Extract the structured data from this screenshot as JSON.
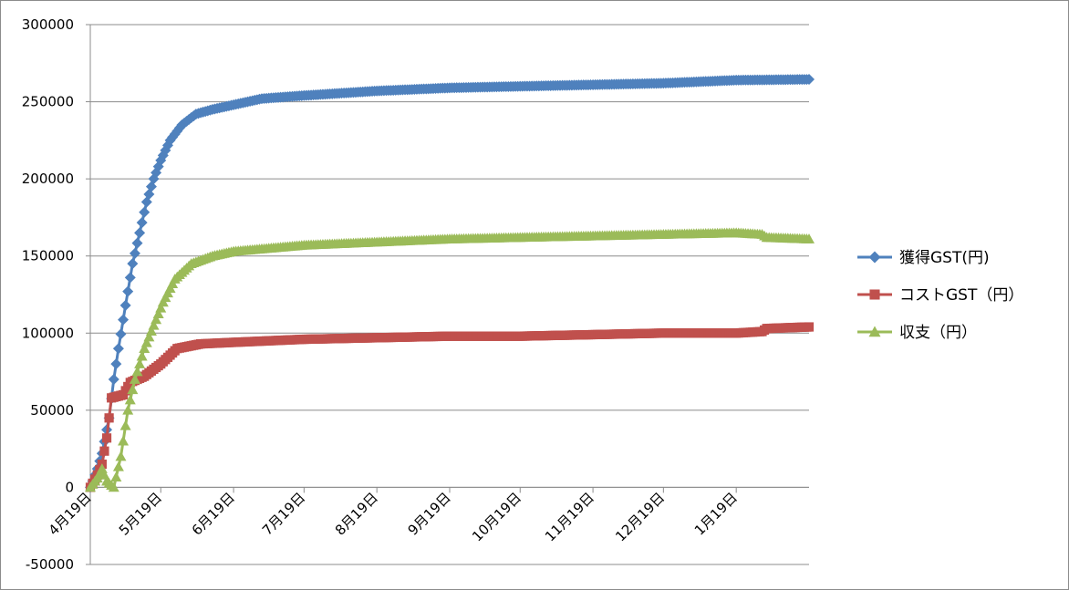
{
  "chart_data": {
    "type": "line",
    "title": "",
    "xlabel": "",
    "ylabel": "",
    "ylim": [
      -50000,
      300000
    ],
    "yticks": [
      -50000,
      0,
      50000,
      100000,
      150000,
      200000,
      250000,
      300000
    ],
    "ytick_labels": [
      "-50000",
      "0",
      "50000",
      "100000",
      "150000",
      "200000",
      "250000",
      "300000"
    ],
    "xlim": [
      "2022-04-19",
      "2023-02-19"
    ],
    "xtick_labels": [
      "4月19日",
      "5月19日",
      "6月19日",
      "7月19日",
      "8月19日",
      "9月19日",
      "10月19日",
      "11月19日",
      "12月19日",
      "1月19日"
    ],
    "xtick_dates": [
      "2022-04-19",
      "2022-05-19",
      "2022-06-19",
      "2022-07-19",
      "2022-08-19",
      "2022-09-19",
      "2022-10-19",
      "2022-11-19",
      "2022-12-19",
      "2023-01-19"
    ],
    "grid": "horizontal",
    "legend": "right",
    "series": [
      {
        "name": "獲得GST(円)",
        "color": "#4f81bd",
        "marker": "diamond",
        "points": [
          [
            "2022-04-19",
            0
          ],
          [
            "2022-04-22",
            12000
          ],
          [
            "2022-04-24",
            22000
          ],
          [
            "2022-04-27",
            45000
          ],
          [
            "2022-04-29",
            70000
          ],
          [
            "2022-05-01",
            90000
          ],
          [
            "2022-05-04",
            118000
          ],
          [
            "2022-05-07",
            145000
          ],
          [
            "2022-05-10",
            165000
          ],
          [
            "2022-05-13",
            185000
          ],
          [
            "2022-05-16",
            200000
          ],
          [
            "2022-05-19",
            212000
          ],
          [
            "2022-05-23",
            225000
          ],
          [
            "2022-05-28",
            235000
          ],
          [
            "2022-06-03",
            242000
          ],
          [
            "2022-06-10",
            245000
          ],
          [
            "2022-06-19",
            248000
          ],
          [
            "2022-07-01",
            252000
          ],
          [
            "2022-07-19",
            254000
          ],
          [
            "2022-08-19",
            257000
          ],
          [
            "2022-09-19",
            259000
          ],
          [
            "2022-10-19",
            260000
          ],
          [
            "2022-11-19",
            261000
          ],
          [
            "2022-12-19",
            262000
          ],
          [
            "2023-01-19",
            264000
          ],
          [
            "2023-02-19",
            264500
          ]
        ]
      },
      {
        "name": "コストGST（円）",
        "color": "#c0504d",
        "marker": "square",
        "points": [
          [
            "2022-04-19",
            0
          ],
          [
            "2022-04-22",
            8000
          ],
          [
            "2022-04-24",
            15000
          ],
          [
            "2022-04-26",
            32000
          ],
          [
            "2022-04-28",
            58000
          ],
          [
            "2022-05-03",
            60000
          ],
          [
            "2022-05-06",
            68000
          ],
          [
            "2022-05-12",
            72000
          ],
          [
            "2022-05-19",
            80000
          ],
          [
            "2022-05-26",
            90000
          ],
          [
            "2022-06-05",
            93000
          ],
          [
            "2022-06-19",
            94000
          ],
          [
            "2022-07-19",
            96000
          ],
          [
            "2022-08-19",
            97000
          ],
          [
            "2022-09-19",
            98000
          ],
          [
            "2022-10-19",
            98000
          ],
          [
            "2022-11-19",
            99000
          ],
          [
            "2022-12-19",
            100000
          ],
          [
            "2023-01-19",
            100000
          ],
          [
            "2023-01-30",
            101000
          ],
          [
            "2023-02-01",
            103000
          ],
          [
            "2023-02-19",
            104000
          ]
        ]
      },
      {
        "name": "収支（円）",
        "color": "#9bbb59",
        "marker": "triangle",
        "points": [
          [
            "2022-04-19",
            0
          ],
          [
            "2022-04-22",
            6000
          ],
          [
            "2022-04-24",
            12000
          ],
          [
            "2022-04-26",
            4000
          ],
          [
            "2022-04-29",
            0
          ],
          [
            "2022-05-02",
            20000
          ],
          [
            "2022-05-05",
            50000
          ],
          [
            "2022-05-08",
            70000
          ],
          [
            "2022-05-12",
            90000
          ],
          [
            "2022-05-16",
            105000
          ],
          [
            "2022-05-20",
            120000
          ],
          [
            "2022-05-25",
            135000
          ],
          [
            "2022-06-01",
            145000
          ],
          [
            "2022-06-10",
            150000
          ],
          [
            "2022-06-19",
            153000
          ],
          [
            "2022-07-19",
            157000
          ],
          [
            "2022-08-19",
            159000
          ],
          [
            "2022-09-19",
            161000
          ],
          [
            "2022-10-19",
            162000
          ],
          [
            "2022-11-19",
            163000
          ],
          [
            "2022-12-19",
            164000
          ],
          [
            "2023-01-19",
            165000
          ],
          [
            "2023-01-30",
            164000
          ],
          [
            "2023-02-01",
            162000
          ],
          [
            "2023-02-19",
            161000
          ]
        ]
      }
    ]
  }
}
